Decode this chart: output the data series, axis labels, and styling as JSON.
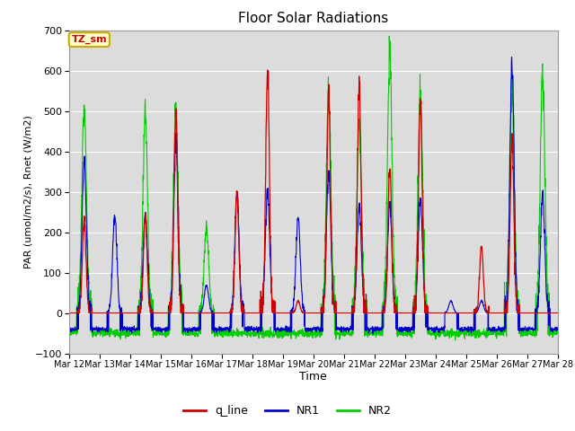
{
  "title": "Floor Solar Radiations",
  "xlabel": "Time",
  "ylabel": "PAR (umol/m2/s), Rnet (W/m2)",
  "ylim": [
    -100,
    700
  ],
  "yticks": [
    -100,
    0,
    100,
    200,
    300,
    400,
    500,
    600,
    700
  ],
  "bg_color": "#dcdcdc",
  "legend_labels": [
    "q_line",
    "NR1",
    "NR2"
  ],
  "legend_colors": [
    "#cc0000",
    "#0000cc",
    "#00cc00"
  ],
  "annotation_text": "TZ_sm",
  "annotation_bg": "#ffffcc",
  "annotation_border": "#ccaa00",
  "annotation_text_color": "#cc0000",
  "num_days": 16,
  "start_day": 12,
  "q_peaks": [
    230,
    0,
    240,
    500,
    0,
    300,
    610,
    30,
    550,
    570,
    360,
    530,
    0,
    170,
    430,
    0
  ],
  "nr1_peaks": [
    375,
    240,
    245,
    430,
    70,
    300,
    300,
    235,
    350,
    260,
    270,
    280,
    30,
    30,
    610,
    290
  ],
  "nr2_peaks": [
    510,
    0,
    500,
    500,
    210,
    0,
    0,
    0,
    540,
    470,
    650,
    560,
    0,
    0,
    560,
    590
  ],
  "night_nr1": -40,
  "night_nr2": -50,
  "pts_per_day": 144
}
